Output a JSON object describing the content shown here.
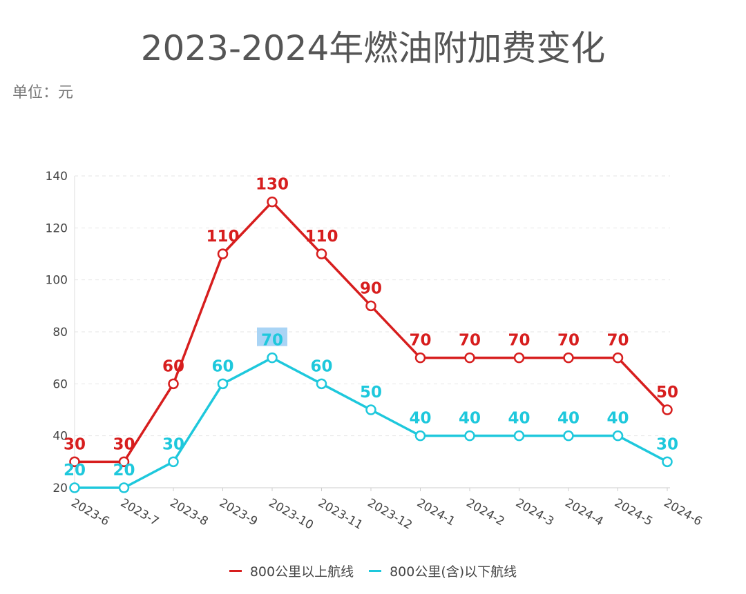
{
  "chart_data": {
    "type": "line",
    "title": "2023-2024年燃油附加费变化",
    "subtitle": "单位：元",
    "categories": [
      "2023-6",
      "2023-7",
      "2023-8",
      "2023-9",
      "2023-10",
      "2023-11",
      "2023-12",
      "2024-1",
      "2024-2",
      "2024-3",
      "2024-4",
      "2024-5",
      "2024-6"
    ],
    "series": [
      {
        "name": "800公里以上航线",
        "color": "#d71e1e",
        "values": [
          30,
          30,
          60,
          110,
          130,
          110,
          90,
          70,
          70,
          70,
          70,
          70,
          50
        ]
      },
      {
        "name": "800公里(含)以下航线",
        "color": "#1ec8dc",
        "values": [
          20,
          20,
          30,
          60,
          70,
          60,
          50,
          40,
          40,
          40,
          40,
          40,
          30
        ]
      }
    ],
    "ylim": [
      20,
      140
    ],
    "yticks": [
      20,
      40,
      60,
      80,
      100,
      120,
      140
    ],
    "grid": true,
    "legend": "bottom",
    "data_labels": true
  }
}
